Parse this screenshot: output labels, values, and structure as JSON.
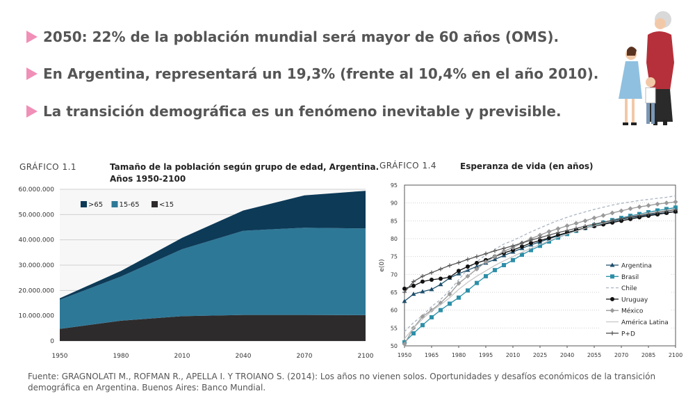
{
  "bullets": [
    "2050: 22% de la población mundial será mayor de 60 años (OMS).",
    "En Argentina, representará un 19,3% (frente al 10,4% en el año 2010).",
    "La transición demográfica es un fenómeno inevitable y previsible."
  ],
  "colors": {
    "bullet_accent": "#f08fb7",
    "text": "#555555"
  },
  "source": "Fuente: GRAGNOLATI M., ROFMAN R., APELLA I. Y TROIANO S. (2014): Los años no vienen solos. Oportunidades y desafíos económicos de la transición demográfica en Argentina. Buenos Aires: Banco Mundial.",
  "chart_data": [
    {
      "type": "area",
      "label": "GRÁFICO 1.1",
      "title_line1": "Tamaño de la población según grupo de edad, Argentina.",
      "title_line2": "Años 1950-2100",
      "x": [
        1950,
        1980,
        2010,
        2040,
        2070,
        2100
      ],
      "xticks": [
        "1950",
        "1980",
        "2010",
        "2040",
        "2070",
        "2100"
      ],
      "yticks": [
        "0",
        "10.000.000",
        "20.000.000",
        "30.000.000",
        "40.000.000",
        "50.000.000",
        "60.000.000"
      ],
      "ylim": [
        0,
        60000000
      ],
      "stacked": true,
      "legend_position": "top-left",
      "series": [
        {
          "name": "<15",
          "color": "#2e2b2c",
          "values": [
            4800000,
            8000000,
            9800000,
            10300000,
            10300000,
            10200000
          ]
        },
        {
          "name": "15-65",
          "color": "#2e7897",
          "values": [
            11500000,
            17500000,
            26500000,
            33300000,
            34500000,
            34300000
          ]
        },
        {
          "name": ">65",
          "color": "#0d3a57",
          "values": [
            600000,
            2200000,
            4500000,
            8000000,
            12800000,
            14900000
          ]
        }
      ]
    },
    {
      "type": "line",
      "label": "GRÁFICO 1.4",
      "title": "Esperanza de vida (en años)",
      "ylabel": "e(0)",
      "x": [
        1950,
        1955,
        1960,
        1965,
        1970,
        1975,
        1980,
        1985,
        1990,
        1995,
        2000,
        2005,
        2010,
        2015,
        2020,
        2025,
        2030,
        2035,
        2040,
        2045,
        2050,
        2055,
        2060,
        2065,
        2070,
        2075,
        2080,
        2085,
        2090,
        2095,
        2100
      ],
      "xticks": [
        "1950",
        "1965",
        "1980",
        "1995",
        "2010",
        "2025",
        "2040",
        "2055",
        "2070",
        "2085",
        "2100"
      ],
      "yticks": [
        "50",
        "55",
        "60",
        "65",
        "70",
        "75",
        "80",
        "85",
        "90",
        "95"
      ],
      "ylim": [
        50,
        95
      ],
      "xlim": [
        1950,
        2100
      ],
      "legend_position": "bottom-right",
      "series": [
        {
          "name": "Argentina",
          "color": "#1d4e6b",
          "marker": "triangle",
          "dash": "",
          "values": [
            62.5,
            64.5,
            65.2,
            65.8,
            67.2,
            69.0,
            70.2,
            71.2,
            72.2,
            73.2,
            74.2,
            75.3,
            76.3,
            77.3,
            78.3,
            79.1,
            80.0,
            80.8,
            81.6,
            82.3,
            83.0,
            83.6,
            84.2,
            84.8,
            85.4,
            85.9,
            86.3,
            86.7,
            87.0,
            87.3,
            87.6
          ]
        },
        {
          "name": "Brasil",
          "color": "#2c8fa8",
          "marker": "square",
          "dash": "",
          "values": [
            51.0,
            53.5,
            55.8,
            58.0,
            60.0,
            61.8,
            63.5,
            65.5,
            67.6,
            69.5,
            71.2,
            72.6,
            74.0,
            75.5,
            76.8,
            78.0,
            79.2,
            80.3,
            81.3,
            82.2,
            83.0,
            83.8,
            84.5,
            85.2,
            85.8,
            86.4,
            86.9,
            87.4,
            87.9,
            88.3,
            88.7
          ]
        },
        {
          "name": "Chile",
          "color": "#aab4c2",
          "marker": "none",
          "dash": "4,3",
          "values": [
            54.0,
            56.5,
            58.5,
            61.0,
            63.0,
            65.5,
            68.5,
            71.5,
            73.5,
            75.5,
            77.0,
            78.5,
            79.5,
            80.7,
            81.9,
            83.0,
            84.1,
            85.1,
            86.0,
            86.8,
            87.5,
            88.2,
            88.8,
            89.4,
            89.9,
            90.3,
            90.7,
            91.0,
            91.3,
            91.6,
            92.0
          ]
        },
        {
          "name": "Uruguay",
          "color": "#111111",
          "marker": "circle",
          "dash": "",
          "values": [
            66.0,
            66.8,
            68.0,
            68.5,
            68.8,
            69.2,
            71.0,
            72.2,
            73.2,
            74.0,
            75.0,
            76.0,
            76.8,
            77.8,
            78.8,
            79.5,
            80.2,
            81.0,
            81.7,
            82.4,
            83.0,
            83.5,
            84.0,
            84.5,
            85.0,
            85.5,
            86.0,
            86.4,
            86.8,
            87.2,
            87.6
          ]
        },
        {
          "name": "México",
          "color": "#9a9a9a",
          "marker": "diamond",
          "dash": "",
          "values": [
            50.5,
            55.0,
            58.2,
            60.0,
            62.0,
            64.5,
            67.5,
            69.5,
            71.5,
            73.5,
            75.0,
            76.5,
            77.5,
            78.8,
            80.0,
            81.0,
            82.0,
            82.8,
            83.6,
            84.3,
            85.0,
            85.8,
            86.5,
            87.2,
            87.8,
            88.4,
            88.9,
            89.3,
            89.7,
            90.0,
            90.3
          ]
        },
        {
          "name": "América Latina",
          "color": "#c6c6c6",
          "marker": "none",
          "dash": "",
          "values": [
            52.0,
            55.0,
            57.5,
            59.8,
            61.5,
            63.5,
            65.8,
            67.8,
            69.5,
            71.0,
            72.5,
            73.8,
            75.0,
            76.2,
            77.3,
            78.4,
            79.4,
            80.4,
            81.3,
            82.1,
            82.9,
            83.6,
            84.3,
            85.0,
            85.6,
            86.2,
            86.7,
            87.2,
            87.6,
            88.0,
            88.4
          ]
        },
        {
          "name": "P+D",
          "color": "#555555",
          "marker": "plus",
          "dash": "",
          "values": [
            65.0,
            68.0,
            69.5,
            70.5,
            71.5,
            72.5,
            73.3,
            74.2,
            75.0,
            75.8,
            76.6,
            77.3,
            78.0,
            78.8,
            79.6,
            80.3,
            81.0,
            81.7,
            82.3,
            82.9,
            83.5,
            84.1,
            84.6,
            85.1,
            85.6,
            86.1,
            86.5,
            86.9,
            87.3,
            87.7,
            88.1
          ]
        }
      ]
    }
  ]
}
